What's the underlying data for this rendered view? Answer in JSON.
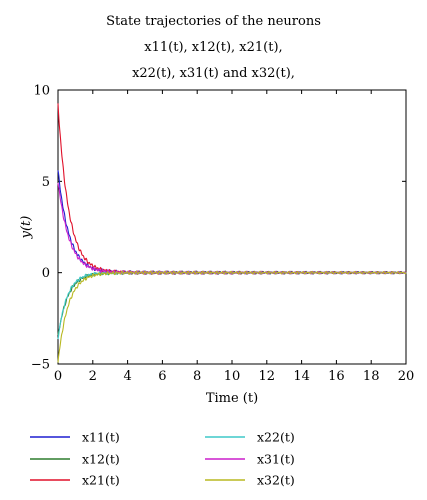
{
  "chart_data": {
    "type": "line",
    "title_lines": [
      "State trajectories of the neurons",
      "x11(t), x12(t), x21(t),",
      "x22(t), x31(t) and x32(t),"
    ],
    "xlabel": "Time (t)",
    "ylabel": "y(t)",
    "xlim": [
      0,
      20
    ],
    "ylim": [
      -5,
      10
    ],
    "xticks": [
      0,
      2,
      4,
      6,
      8,
      10,
      12,
      14,
      16,
      18,
      20
    ],
    "yticks": [
      -5,
      0,
      5,
      10
    ],
    "grid": false,
    "legend_position": "bottom",
    "series": [
      {
        "name": "x11(t)",
        "color": "#1f1fd0",
        "x0": 0,
        "y0": 5.6,
        "decay": 1.55,
        "osc": 0.07
      },
      {
        "name": "x12(t)",
        "color": "#2e7d2e",
        "x0": 0,
        "y0": -3.5,
        "decay": 1.75,
        "osc": 0.06
      },
      {
        "name": "x21(t)",
        "color": "#e0102a",
        "x0": 0,
        "y0": 9.2,
        "decay": 1.6,
        "osc": 0.07
      },
      {
        "name": "x22(t)",
        "color": "#3fc9c9",
        "x0": 0,
        "y0": -3.6,
        "decay": 1.9,
        "osc": 0.06
      },
      {
        "name": "x31(t)",
        "color": "#cc1fcc",
        "x0": 0,
        "y0": 5.0,
        "decay": 1.55,
        "osc": 0.07
      },
      {
        "name": "x32(t)",
        "color": "#b8b820",
        "x0": 0,
        "y0": -4.9,
        "decay": 1.7,
        "osc": 0.06
      }
    ]
  }
}
